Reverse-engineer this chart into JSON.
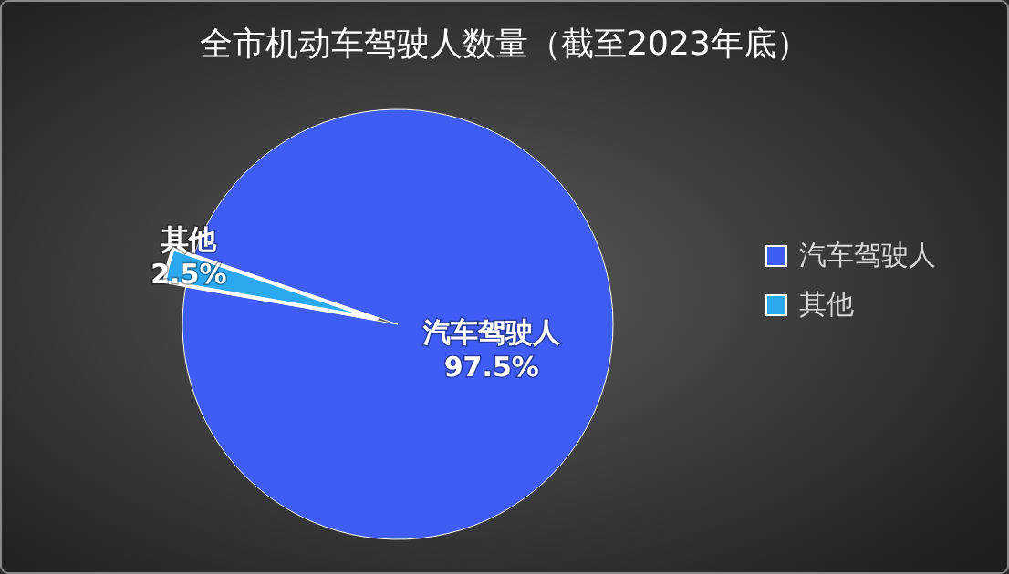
{
  "chart_data": {
    "type": "pie",
    "title": "全市机动车驾驶人数量（截至2023年底）",
    "categories": [
      "汽车驾驶人",
      "其他"
    ],
    "values": [
      97.5,
      2.5
    ],
    "colors": [
      "#3f5cf5",
      "#2aa8f0"
    ],
    "value_labels": [
      "97.5%",
      "2.5%"
    ],
    "legend": "right"
  }
}
